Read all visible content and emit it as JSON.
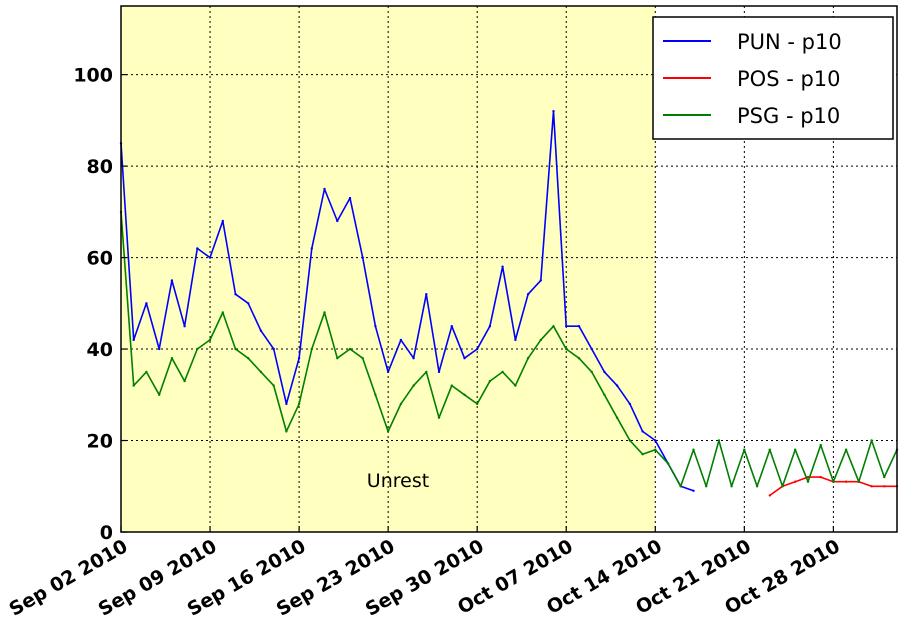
{
  "chart_data": {
    "type": "line",
    "title": "",
    "xlabel": "",
    "ylabel": "",
    "x_range": [
      "2010-09-02",
      "2010-11-02"
    ],
    "ylim": [
      0,
      115
    ],
    "y_ticks": [
      0,
      20,
      40,
      60,
      80,
      100
    ],
    "x_ticks": [
      {
        "date": "2010-09-02",
        "label": "Sep 02 2010"
      },
      {
        "date": "2010-09-09",
        "label": "Sep 09 2010"
      },
      {
        "date": "2010-09-16",
        "label": "Sep 16 2010"
      },
      {
        "date": "2010-09-23",
        "label": "Sep 23 2010"
      },
      {
        "date": "2010-09-30",
        "label": "Sep 30 2010"
      },
      {
        "date": "2010-10-07",
        "label": "Oct 07 2010"
      },
      {
        "date": "2010-10-14",
        "label": "Oct 14 2010"
      },
      {
        "date": "2010-10-21",
        "label": "Oct 21 2010"
      },
      {
        "date": "2010-10-28",
        "label": "Oct 28 2010"
      }
    ],
    "grid": true,
    "legend_position": "top-right",
    "shaded_region": {
      "start": "2010-09-02",
      "end": "2010-10-14",
      "label": "Unrest",
      "color": "#ffffbf"
    },
    "series": [
      {
        "name": "PUN - p10",
        "color": "#0000ff",
        "points": [
          [
            "2010-09-02",
            85
          ],
          [
            "2010-09-03",
            42
          ],
          [
            "2010-09-04",
            50
          ],
          [
            "2010-09-05",
            40
          ],
          [
            "2010-09-06",
            55
          ],
          [
            "2010-09-07",
            45
          ],
          [
            "2010-09-08",
            62
          ],
          [
            "2010-09-09",
            60
          ],
          [
            "2010-09-10",
            68
          ],
          [
            "2010-09-11",
            52
          ],
          [
            "2010-09-12",
            50
          ],
          [
            "2010-09-13",
            44
          ],
          [
            "2010-09-14",
            40
          ],
          [
            "2010-09-15",
            28
          ],
          [
            "2010-09-16",
            38
          ],
          [
            "2010-09-17",
            62
          ],
          [
            "2010-09-18",
            75
          ],
          [
            "2010-09-19",
            68
          ],
          [
            "2010-09-20",
            73
          ],
          [
            "2010-09-21",
            60
          ],
          [
            "2010-09-22",
            45
          ],
          [
            "2010-09-23",
            35
          ],
          [
            "2010-09-24",
            42
          ],
          [
            "2010-09-25",
            38
          ],
          [
            "2010-09-26",
            52
          ],
          [
            "2010-09-27",
            35
          ],
          [
            "2010-09-28",
            45
          ],
          [
            "2010-09-29",
            38
          ],
          [
            "2010-09-30",
            40
          ],
          [
            "2010-10-01",
            45
          ],
          [
            "2010-10-02",
            58
          ],
          [
            "2010-10-03",
            42
          ],
          [
            "2010-10-04",
            52
          ],
          [
            "2010-10-05",
            55
          ],
          [
            "2010-10-06",
            92
          ],
          [
            "2010-10-07",
            45
          ],
          [
            "2010-10-08",
            45
          ],
          [
            "2010-10-09",
            40
          ],
          [
            "2010-10-10",
            35
          ],
          [
            "2010-10-11",
            32
          ],
          [
            "2010-10-12",
            28
          ],
          [
            "2010-10-13",
            22
          ],
          [
            "2010-10-14",
            20
          ],
          [
            "2010-10-15",
            15
          ],
          [
            "2010-10-16",
            10
          ],
          [
            "2010-10-17",
            9
          ]
        ]
      },
      {
        "name": "POS - p10",
        "color": "#ff0000",
        "points": [
          [
            "2010-10-23",
            8
          ],
          [
            "2010-10-24",
            10
          ],
          [
            "2010-10-25",
            11
          ],
          [
            "2010-10-26",
            12
          ],
          [
            "2010-10-27",
            12
          ],
          [
            "2010-10-28",
            11
          ],
          [
            "2010-10-29",
            11
          ],
          [
            "2010-10-30",
            11
          ],
          [
            "2010-10-31",
            10
          ],
          [
            "2010-11-01",
            10
          ],
          [
            "2010-11-02",
            10
          ]
        ]
      },
      {
        "name": "PSG - p10",
        "color": "#008000",
        "points": [
          [
            "2010-09-02",
            70
          ],
          [
            "2010-09-03",
            32
          ],
          [
            "2010-09-04",
            35
          ],
          [
            "2010-09-05",
            30
          ],
          [
            "2010-09-06",
            38
          ],
          [
            "2010-09-07",
            33
          ],
          [
            "2010-09-08",
            40
          ],
          [
            "2010-09-09",
            42
          ],
          [
            "2010-09-10",
            48
          ],
          [
            "2010-09-11",
            40
          ],
          [
            "2010-09-12",
            38
          ],
          [
            "2010-09-13",
            35
          ],
          [
            "2010-09-14",
            32
          ],
          [
            "2010-09-15",
            22
          ],
          [
            "2010-09-16",
            28
          ],
          [
            "2010-09-17",
            40
          ],
          [
            "2010-09-18",
            48
          ],
          [
            "2010-09-19",
            38
          ],
          [
            "2010-09-20",
            40
          ],
          [
            "2010-09-21",
            38
          ],
          [
            "2010-09-22",
            30
          ],
          [
            "2010-09-23",
            22
          ],
          [
            "2010-09-24",
            28
          ],
          [
            "2010-09-25",
            32
          ],
          [
            "2010-09-26",
            35
          ],
          [
            "2010-09-27",
            25
          ],
          [
            "2010-09-28",
            32
          ],
          [
            "2010-09-29",
            30
          ],
          [
            "2010-09-30",
            28
          ],
          [
            "2010-10-01",
            33
          ],
          [
            "2010-10-02",
            35
          ],
          [
            "2010-10-03",
            32
          ],
          [
            "2010-10-04",
            38
          ],
          [
            "2010-10-05",
            42
          ],
          [
            "2010-10-06",
            45
          ],
          [
            "2010-10-07",
            40
          ],
          [
            "2010-10-08",
            38
          ],
          [
            "2010-10-09",
            35
          ],
          [
            "2010-10-10",
            30
          ],
          [
            "2010-10-11",
            25
          ],
          [
            "2010-10-12",
            20
          ],
          [
            "2010-10-13",
            17
          ],
          [
            "2010-10-14",
            18
          ],
          [
            "2010-10-15",
            15
          ],
          [
            "2010-10-16",
            10
          ],
          [
            "2010-10-17",
            18
          ],
          [
            "2010-10-18",
            10
          ],
          [
            "2010-10-19",
            20
          ],
          [
            "2010-10-20",
            10
          ],
          [
            "2010-10-21",
            18
          ],
          [
            "2010-10-22",
            10
          ],
          [
            "2010-10-23",
            18
          ],
          [
            "2010-10-24",
            10
          ],
          [
            "2010-10-25",
            18
          ],
          [
            "2010-10-26",
            11
          ],
          [
            "2010-10-27",
            19
          ],
          [
            "2010-10-28",
            11
          ],
          [
            "2010-10-29",
            18
          ],
          [
            "2010-10-30",
            11
          ],
          [
            "2010-10-31",
            20
          ],
          [
            "2010-11-01",
            12
          ],
          [
            "2010-11-02",
            18
          ]
        ]
      }
    ]
  }
}
